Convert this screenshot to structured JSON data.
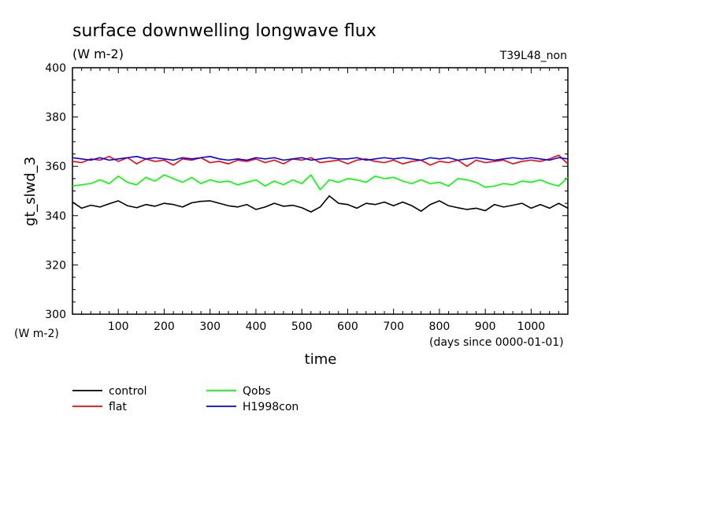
{
  "chart_data": {
    "type": "line",
    "title": "surface downwelling longwave flux",
    "units_label": "(W m-2)",
    "run_label": "T39L48_non",
    "ylabel": "gt_slwd_3",
    "y_unit_label": "(W m-2)",
    "xlabel": "time",
    "x_unit_label": "(days since 0000-01-01)",
    "xlim": [
      0,
      1080
    ],
    "ylim": [
      300,
      400
    ],
    "x_ticks": [
      100,
      200,
      300,
      400,
      500,
      600,
      700,
      800,
      900,
      1000
    ],
    "y_ticks": [
      300,
      320,
      340,
      360,
      380,
      400
    ],
    "grid": false,
    "legend_position": "bottom-left",
    "series": [
      {
        "name": "control",
        "color": "#000000",
        "x": [
          0,
          20,
          40,
          60,
          80,
          100,
          120,
          140,
          160,
          180,
          200,
          220,
          240,
          260,
          280,
          300,
          320,
          340,
          360,
          380,
          400,
          420,
          440,
          460,
          480,
          500,
          520,
          540,
          560,
          580,
          600,
          620,
          640,
          660,
          680,
          700,
          720,
          740,
          760,
          780,
          800,
          820,
          840,
          860,
          880,
          900,
          920,
          940,
          960,
          980,
          1000,
          1020,
          1040,
          1060,
          1080
        ],
        "values": [
          345.5,
          343.0,
          344.2,
          343.5,
          344.8,
          346.0,
          344.0,
          343.2,
          344.5,
          343.8,
          345.0,
          344.5,
          343.5,
          345.2,
          345.8,
          346.0,
          345.0,
          344.0,
          343.5,
          344.5,
          342.5,
          343.5,
          345.0,
          343.8,
          344.2,
          343.2,
          341.5,
          343.5,
          348.0,
          345.0,
          344.5,
          343.0,
          345.0,
          344.5,
          345.5,
          344.0,
          345.5,
          344.0,
          341.8,
          344.5,
          346.0,
          344.0,
          343.2,
          342.5,
          343.0,
          342.0,
          344.5,
          343.5,
          344.2,
          345.0,
          343.0,
          344.5,
          343.0,
          345.0,
          343.0
        ]
      },
      {
        "name": "Qobs",
        "color": "#00ff00",
        "x": [
          0,
          20,
          40,
          60,
          80,
          100,
          120,
          140,
          160,
          180,
          200,
          220,
          240,
          260,
          280,
          300,
          320,
          340,
          360,
          380,
          400,
          420,
          440,
          460,
          480,
          500,
          520,
          540,
          560,
          580,
          600,
          620,
          640,
          660,
          680,
          700,
          720,
          740,
          760,
          780,
          800,
          820,
          840,
          860,
          880,
          900,
          920,
          940,
          960,
          980,
          1000,
          1020,
          1040,
          1060,
          1080
        ],
        "values": [
          352.0,
          352.5,
          353.0,
          354.5,
          353.0,
          356.0,
          353.5,
          352.5,
          355.5,
          354.0,
          356.5,
          355.0,
          353.5,
          355.5,
          353.0,
          354.5,
          353.5,
          354.0,
          352.5,
          353.5,
          354.5,
          352.0,
          354.0,
          352.5,
          354.5,
          353.0,
          356.5,
          350.5,
          354.5,
          353.5,
          355.0,
          354.5,
          353.5,
          356.0,
          355.0,
          355.5,
          354.0,
          353.0,
          354.5,
          353.0,
          353.5,
          352.0,
          355.0,
          354.5,
          353.5,
          351.5,
          352.0,
          353.0,
          352.5,
          354.0,
          353.5,
          354.5,
          353.0,
          352.0,
          355.5
        ]
      },
      {
        "name": "flat",
        "color": "#ff0000",
        "x": [
          0,
          20,
          40,
          60,
          80,
          100,
          120,
          140,
          160,
          180,
          200,
          220,
          240,
          260,
          280,
          300,
          320,
          340,
          360,
          380,
          400,
          420,
          440,
          460,
          480,
          500,
          520,
          540,
          560,
          580,
          600,
          620,
          640,
          660,
          680,
          700,
          720,
          740,
          760,
          780,
          800,
          820,
          840,
          860,
          880,
          900,
          920,
          940,
          960,
          980,
          1000,
          1020,
          1040,
          1060,
          1080
        ],
        "values": [
          362.0,
          361.5,
          363.0,
          362.5,
          364.0,
          362.0,
          363.5,
          361.0,
          363.0,
          362.0,
          362.5,
          360.5,
          363.0,
          362.5,
          363.5,
          361.5,
          362.0,
          361.0,
          362.5,
          362.0,
          363.0,
          361.5,
          362.5,
          361.0,
          363.0,
          362.5,
          363.5,
          361.5,
          362.0,
          362.5,
          361.0,
          362.5,
          363.0,
          362.0,
          361.5,
          362.5,
          361.0,
          362.0,
          362.5,
          360.5,
          362.0,
          361.5,
          362.5,
          360.0,
          362.5,
          361.5,
          362.0,
          362.5,
          361.0,
          362.0,
          362.5,
          362.0,
          363.0,
          364.5,
          361.0
        ]
      },
      {
        "name": "H1998con",
        "color": "#0000ff",
        "x": [
          0,
          20,
          40,
          60,
          80,
          100,
          120,
          140,
          160,
          180,
          200,
          220,
          240,
          260,
          280,
          300,
          320,
          340,
          360,
          380,
          400,
          420,
          440,
          460,
          480,
          500,
          520,
          540,
          560,
          580,
          600,
          620,
          640,
          660,
          680,
          700,
          720,
          740,
          760,
          780,
          800,
          820,
          840,
          860,
          880,
          900,
          920,
          940,
          960,
          980,
          1000,
          1020,
          1040,
          1060,
          1080
        ],
        "values": [
          363.5,
          363.0,
          362.5,
          363.5,
          362.5,
          363.0,
          363.5,
          364.0,
          363.0,
          363.5,
          363.0,
          362.5,
          363.5,
          363.0,
          363.5,
          364.0,
          363.0,
          362.5,
          363.0,
          362.5,
          363.5,
          363.0,
          363.5,
          362.5,
          363.0,
          363.5,
          362.5,
          363.0,
          363.5,
          363.0,
          363.0,
          363.5,
          362.5,
          363.0,
          363.5,
          363.0,
          363.5,
          363.0,
          362.5,
          363.5,
          363.0,
          363.5,
          362.5,
          363.0,
          363.5,
          363.0,
          362.5,
          363.0,
          363.5,
          363.0,
          363.5,
          363.0,
          362.5,
          363.5,
          363.0
        ]
      }
    ]
  }
}
